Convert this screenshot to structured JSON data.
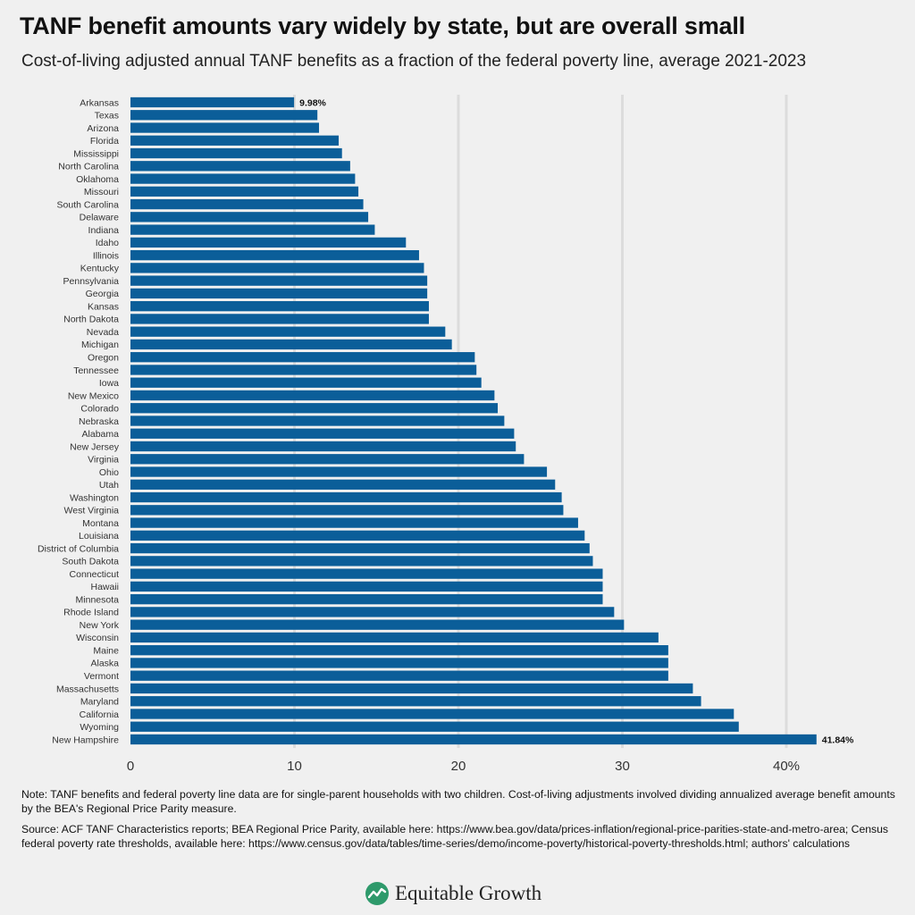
{
  "header": {
    "title": "TANF benefit amounts vary widely by state, but are overall small",
    "subtitle": "Cost-of-living adjusted annual TANF benefits as a fraction of the federal poverty line, average 2021-2023"
  },
  "chart_data": {
    "type": "bar",
    "orientation": "horizontal",
    "title": "TANF benefit amounts vary widely by state, but are overall small",
    "subtitle": "Cost-of-living adjusted annual TANF benefits as a fraction of the federal poverty line, average 2021-2023",
    "xlabel": "",
    "ylabel": "",
    "xlim": [
      0,
      44
    ],
    "xticks": [
      0,
      10,
      20,
      30,
      40
    ],
    "xtick_labels": [
      "0",
      "10",
      "20",
      "30",
      "40%"
    ],
    "grid": true,
    "color": "#0b5e99",
    "categories": [
      "Arkansas",
      "Texas",
      "Arizona",
      "Florida",
      "Mississippi",
      "North Carolina",
      "Oklahoma",
      "Missouri",
      "South Carolina",
      "Delaware",
      "Indiana",
      "Idaho",
      "Illinois",
      "Kentucky",
      "Pennsylvania",
      "Georgia",
      "Kansas",
      "North Dakota",
      "Nevada",
      "Michigan",
      "Oregon",
      "Tennessee",
      "Iowa",
      "New Mexico",
      "Colorado",
      "Nebraska",
      "Alabama",
      "New Jersey",
      "Virginia",
      "Ohio",
      "Utah",
      "Washington",
      "West Virginia",
      "Montana",
      "Louisiana",
      "District of Columbia",
      "South Dakota",
      "Connecticut",
      "Hawaii",
      "Minnesota",
      "Rhode Island",
      "New York",
      "Wisconsin",
      "Maine",
      "Alaska",
      "Vermont",
      "Massachusetts",
      "Maryland",
      "California",
      "Wyoming",
      "New Hampshire"
    ],
    "values": [
      9.98,
      11.4,
      11.5,
      12.7,
      12.9,
      13.4,
      13.7,
      13.9,
      14.2,
      14.5,
      14.9,
      16.8,
      17.6,
      17.9,
      18.1,
      18.1,
      18.2,
      18.2,
      19.2,
      19.6,
      21.0,
      21.1,
      21.4,
      22.2,
      22.4,
      22.8,
      23.4,
      23.5,
      24.0,
      25.4,
      25.9,
      26.3,
      26.4,
      27.3,
      27.7,
      28.0,
      28.2,
      28.8,
      28.8,
      28.8,
      29.5,
      30.1,
      32.2,
      32.8,
      32.8,
      32.8,
      34.3,
      34.8,
      36.8,
      37.1,
      41.84
    ],
    "data_labels": [
      {
        "category": "Arkansas",
        "text": "9.98%"
      },
      {
        "category": "New Hampshire",
        "text": "41.84%"
      }
    ]
  },
  "notes": {
    "note": "Note: TANF benefits and federal poverty line data are for single-parent households with two children. Cost-of-living adjustments involved dividing annualized average benefit amounts by the BEA's Regional Price Parity measure.",
    "source": "Source: ACF TANF Characteristics reports; BEA Regional Price Parity, available here: https://www.bea.gov/data/prices-inflation/regional-price-parities-state-and-metro-area; Census federal poverty rate thresholds, available here: https://www.census.gov/data/tables/time-series/demo/income-poverty/historical-poverty-thresholds.html; authors' calculations"
  },
  "footer": {
    "logo_text": "Equitable Growth",
    "logo_icon": "equitable-growth-logo-icon",
    "logo_color": "#2e9a6b"
  }
}
